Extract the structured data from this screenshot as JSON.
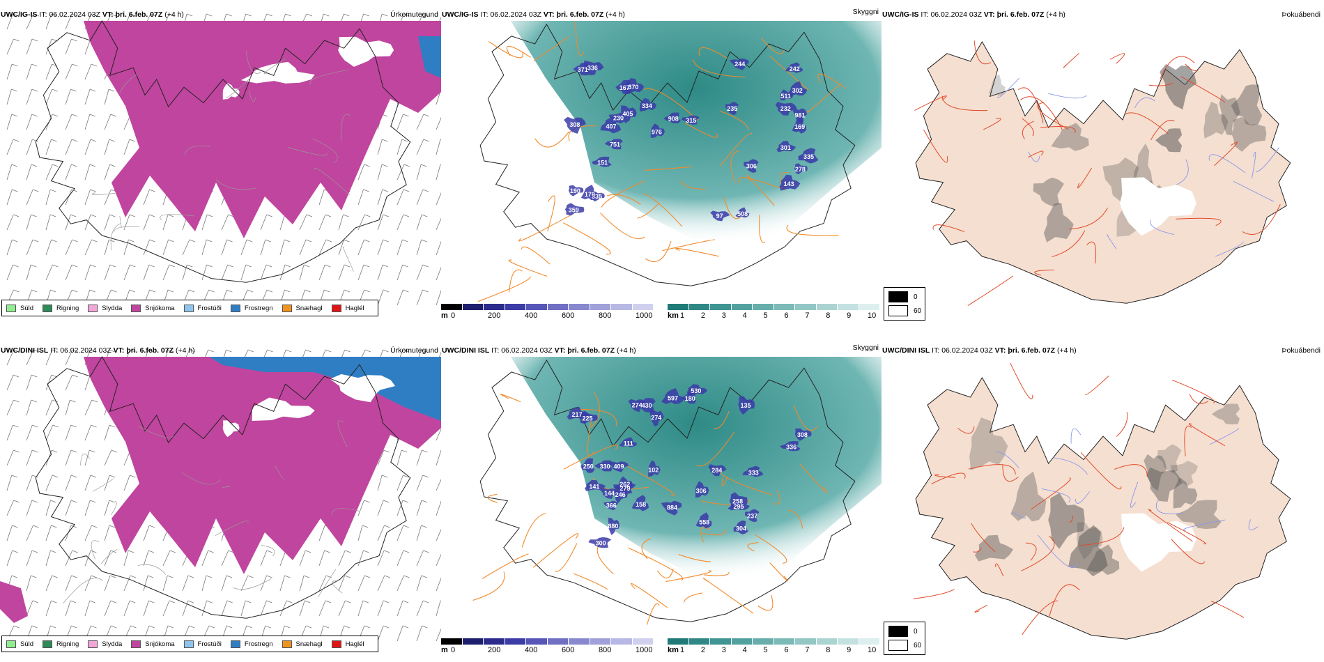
{
  "rows": [
    {
      "model": "UWC/IG-IS",
      "it_label": "IT:",
      "it_value": "06.02.2024 03Z",
      "vt_label": "VT:",
      "vt_value": "þri. 6.feb. 07Z",
      "lead": "(+4 h)",
      "cloud_numbers": [
        "508",
        "976",
        "335",
        "308",
        "306",
        "908",
        "169",
        "370",
        "278",
        "232",
        "230",
        "371",
        "407",
        "301",
        "359",
        "336",
        "244",
        "751",
        "335",
        "302",
        "511",
        "405",
        "981",
        "315",
        "151",
        "179",
        "334",
        "190",
        "97",
        "235",
        "167",
        "242",
        "143"
      ]
    },
    {
      "model": "UWC/DINI ISL",
      "it_label": "IT:",
      "it_value": "06.02.2024 03Z",
      "vt_label": "VT:",
      "vt_value": "þri. 6.feb. 07Z",
      "lead": "(+4 h)",
      "cloud_numbers": [
        "597",
        "306",
        "308",
        "274",
        "237",
        "336",
        "558",
        "530",
        "246",
        "284",
        "366",
        "330",
        "333",
        "217",
        "225",
        "274",
        "884",
        "430",
        "304",
        "295",
        "262",
        "880",
        "409",
        "300",
        "250",
        "111",
        "102",
        "135",
        "144",
        "279",
        "180",
        "158",
        "141",
        "258"
      ]
    }
  ],
  "panel_titles": {
    "precip": "Úrkomutegund",
    "cloud": "Skyggni",
    "fog": "Þokuábendi"
  },
  "precip_legend": [
    {
      "label": "Súld",
      "color": "#90ee90"
    },
    {
      "label": "Rigning",
      "color": "#2e8b57"
    },
    {
      "label": "Slydda",
      "color": "#f2a7d8"
    },
    {
      "label": "Snjókoma",
      "color": "#c0459e"
    },
    {
      "label": "Frostúði",
      "color": "#8ec4ee"
    },
    {
      "label": "Frostregn",
      "color": "#2f7ec4"
    },
    {
      "label": "Snæhagl",
      "color": "#f0931e"
    },
    {
      "label": "Haglél",
      "color": "#e01414"
    }
  ],
  "height_bar": {
    "unit": "m",
    "ticks": [
      "0",
      "200",
      "400",
      "600",
      "800",
      "1000"
    ],
    "colors": [
      "#000000",
      "#1e1e6e",
      "#2b2b8c",
      "#3c3ca6",
      "#5656b8",
      "#6f6fc4",
      "#8888cf",
      "#a0a0da",
      "#b8b8e4",
      "#d0d0ee"
    ]
  },
  "visibility_bar": {
    "unit": "km",
    "ticks": [
      "1",
      "2",
      "3",
      "4",
      "5",
      "6",
      "7",
      "8",
      "9",
      "10"
    ],
    "colors": [
      "#1f7a78",
      "#2f8886",
      "#3f9593",
      "#52a19f",
      "#66adab",
      "#7cbab8",
      "#93c7c5",
      "#aad4d2",
      "#c3e1e0",
      "#dcefee"
    ]
  },
  "fog_legend": [
    {
      "label": "0",
      "color": "#000000"
    },
    {
      "label": "60",
      "color": "#ffffff"
    }
  ],
  "colors": {
    "snow": "#c0459e",
    "freezing_rain": "#2f7ec4",
    "visibility_teal": "#2e8a86",
    "roads_orange": "#f28a2a",
    "fog_land": "#f5dfd0",
    "fog_roads": "#e24a2a",
    "rivers_blue": "#8a96ee"
  }
}
